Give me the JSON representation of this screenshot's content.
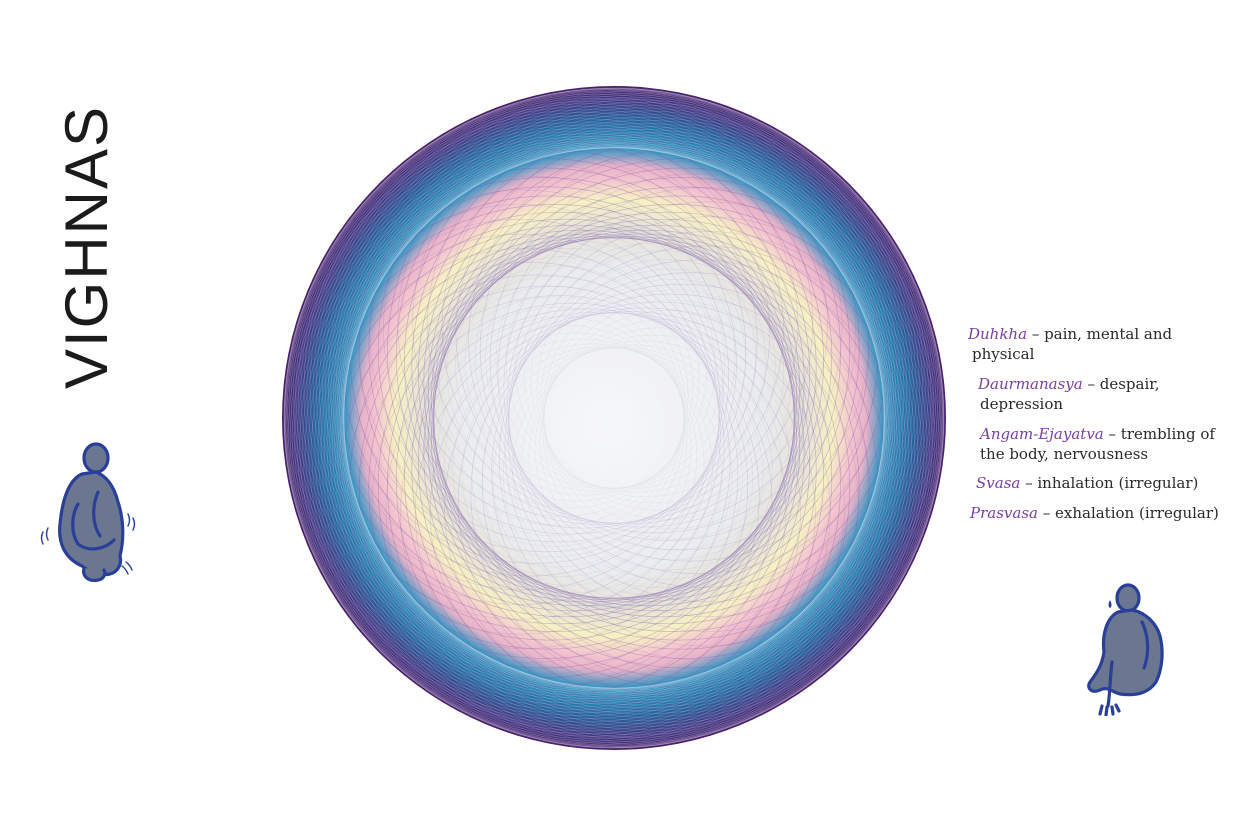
{
  "title": "VIGHNAS",
  "vighnas": [
    {
      "term": "Duhkha",
      "desc": " – pain, mental and",
      "desc2": "physical"
    },
    {
      "term": "Daurmanasya",
      "desc": " – despair,",
      "desc2": "depression"
    },
    {
      "term": "Angam-Ejayatva",
      "desc": " – trembling of",
      "desc2": "the body, nervousness"
    },
    {
      "term": "Svasa",
      "desc": " – inhalation (irregular)",
      "desc2": ""
    },
    {
      "term": "Prasvasa",
      "desc": " – exhalation (irregular)",
      "desc2": ""
    }
  ],
  "colors": {
    "term": "#7a3fa4",
    "outer_ring": "#4a1f6e",
    "blue_band": "#1f7fb0",
    "pink_band": "#f2b6c6",
    "yellow_band": "#f7f0bf",
    "center": "#e9eaee",
    "figure_fill": "#6b7690",
    "figure_outline": "#2a3f98"
  },
  "icons": {
    "left_figure": "crouching-trembling-figure-icon",
    "right_figure": "seated-crying-figure-icon",
    "mandala": "spirograph-mandala"
  }
}
